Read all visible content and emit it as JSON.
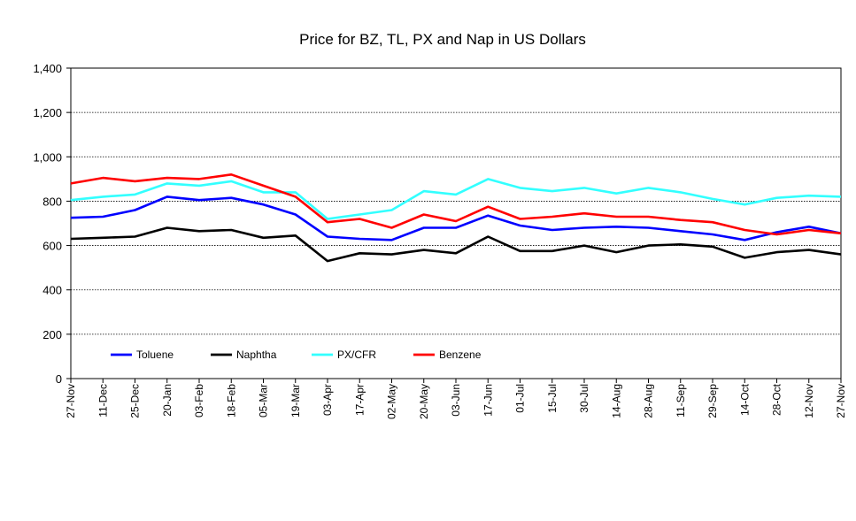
{
  "chart_data": {
    "type": "line",
    "title": "Price for BZ, TL, PX and Nap in US Dollars",
    "xlabel": "",
    "ylabel": "",
    "ylim": [
      0,
      1400
    ],
    "yticks": [
      0,
      200,
      400,
      600,
      800,
      1000,
      1200,
      1400
    ],
    "ytick_labels": [
      "0",
      "200",
      "400",
      "600",
      "800",
      "1,000",
      "1,200",
      "1,400"
    ],
    "grid": "horizontal-dotted",
    "legend_position": "bottom-left-inside",
    "x": [
      "27-Nov",
      "11-Dec",
      "25-Dec",
      "20-Jan",
      "03-Feb",
      "18-Feb",
      "05-Mar",
      "19-Mar",
      "03-Apr",
      "17-Apr",
      "02-May",
      "20-May",
      "03-Jun",
      "17-Jun",
      "01-Jul",
      "15-Jul",
      "30-Jul",
      "14-Aug",
      "28-Aug",
      "11-Sep",
      "29-Sep",
      "14-Oct",
      "28-Oct",
      "12-Nov",
      "27-Nov"
    ],
    "series": [
      {
        "name": "Toluene",
        "color": "#0000ff",
        "values": [
          725,
          730,
          760,
          820,
          805,
          815,
          785,
          740,
          640,
          630,
          625,
          680,
          680,
          735,
          690,
          670,
          680,
          685,
          680,
          665,
          650,
          625,
          660,
          685,
          655
        ]
      },
      {
        "name": "Naphtha",
        "color": "#000000",
        "values": [
          630,
          635,
          640,
          680,
          665,
          670,
          635,
          645,
          530,
          565,
          560,
          580,
          565,
          640,
          575,
          575,
          600,
          570,
          600,
          605,
          595,
          545,
          570,
          580,
          560
        ]
      },
      {
        "name": "PX/CFR",
        "color": "#33ffff",
        "values": [
          805,
          820,
          830,
          880,
          870,
          890,
          840,
          840,
          720,
          740,
          760,
          845,
          830,
          900,
          860,
          845,
          860,
          835,
          860,
          840,
          810,
          785,
          815,
          825,
          820
        ]
      },
      {
        "name": "Benzene",
        "color": "#ff0000",
        "values": [
          880,
          905,
          890,
          905,
          900,
          920,
          870,
          820,
          705,
          720,
          680,
          740,
          710,
          775,
          720,
          730,
          745,
          730,
          730,
          715,
          705,
          670,
          650,
          670,
          655
        ]
      }
    ]
  }
}
